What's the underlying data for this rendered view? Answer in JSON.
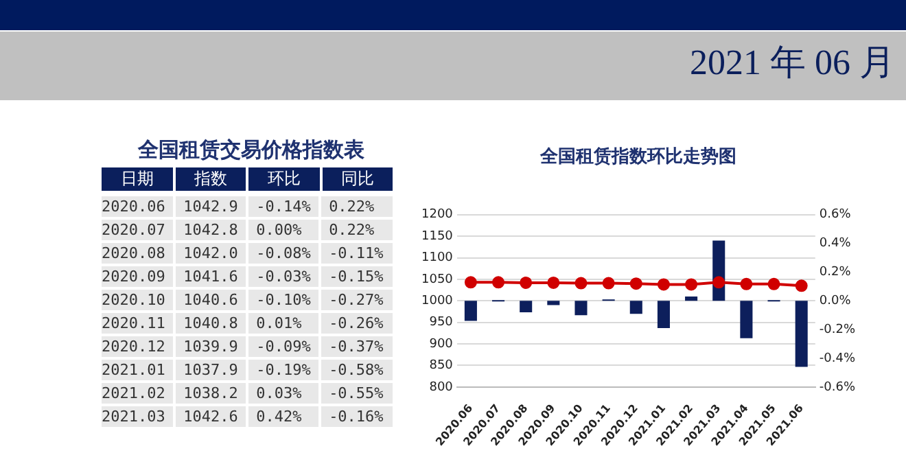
{
  "chart_data": [
    {
      "type": "other",
      "title": "全国租赁交易价格指数表",
      "annotations": [
        "2021 年 06 月"
      ],
      "categories": [
        "日期",
        "指数",
        "环比",
        "同比"
      ],
      "cell_labels": [
        [
          "2020.06",
          "1042.9",
          "-0.14%",
          "0.22%"
        ],
        [
          "2020.07",
          "1042.8",
          "0.00%",
          "0.22%"
        ],
        [
          "2020.08",
          "1042.0",
          "-0.08%",
          "-0.11%"
        ],
        [
          "2020.09",
          "1041.6",
          "-0.03%",
          "-0.15%"
        ],
        [
          "2020.10",
          "1040.6",
          "-0.10%",
          "-0.27%"
        ],
        [
          "2020.11",
          "1040.8",
          "0.01%",
          "-0.26%"
        ],
        [
          "2020.12",
          "1039.9",
          "-0.09%",
          "-0.37%"
        ],
        [
          "2021.01",
          "1037.9",
          "-0.19%",
          "-0.58%"
        ],
        [
          "2021.02",
          "1038.2",
          "0.03%",
          "-0.55%"
        ],
        [
          "2021.03",
          "1042.6",
          "0.42%",
          "-0.16%"
        ]
      ]
    },
    {
      "type": "bar",
      "title": "全国租赁指数环比走势图",
      "categories": [
        "2020.06",
        "2020.07",
        "2020.08",
        "2020.09",
        "2020.10",
        "2020.11",
        "2020.12",
        "2021.01",
        "2021.02",
        "2021.03",
        "2021.04",
        "2021.05",
        "2021.06"
      ],
      "series": [
        {
          "type": "bar",
          "axis": "y2",
          "color": "#0d1f5c",
          "values": [
            -0.14,
            0.0,
            -0.08,
            -0.03,
            -0.1,
            0.01,
            -0.09,
            -0.19,
            0.03,
            0.42,
            -0.26,
            0.0,
            -0.46
          ]
        },
        {
          "type": "line",
          "color": "#d00000",
          "values": [
            1043,
            1043,
            1042,
            1042,
            1041,
            1041,
            1040,
            1038,
            1038,
            1043,
            1039,
            1039,
            1035
          ]
        }
      ],
      "ylim": [
        800,
        1200
      ],
      "yticks": [
        800,
        850,
        900,
        950,
        1000,
        1050,
        1100,
        1150,
        1200
      ],
      "y2lim": [
        -0.6,
        0.6
      ],
      "y2ticks": [
        {
          "value": -0.6,
          "label": "-0.6%"
        },
        {
          "value": -0.4,
          "label": "-0.4%"
        },
        {
          "value": -0.2,
          "label": "-0.2%"
        },
        {
          "value": 0,
          "label": "0.0%"
        },
        {
          "value": 0.2,
          "label": "0.2%"
        },
        {
          "value": 0.4,
          "label": "0.4%"
        },
        {
          "value": 0.6,
          "label": "0.6%"
        }
      ],
      "grid": "y",
      "marker": "circle"
    }
  ]
}
